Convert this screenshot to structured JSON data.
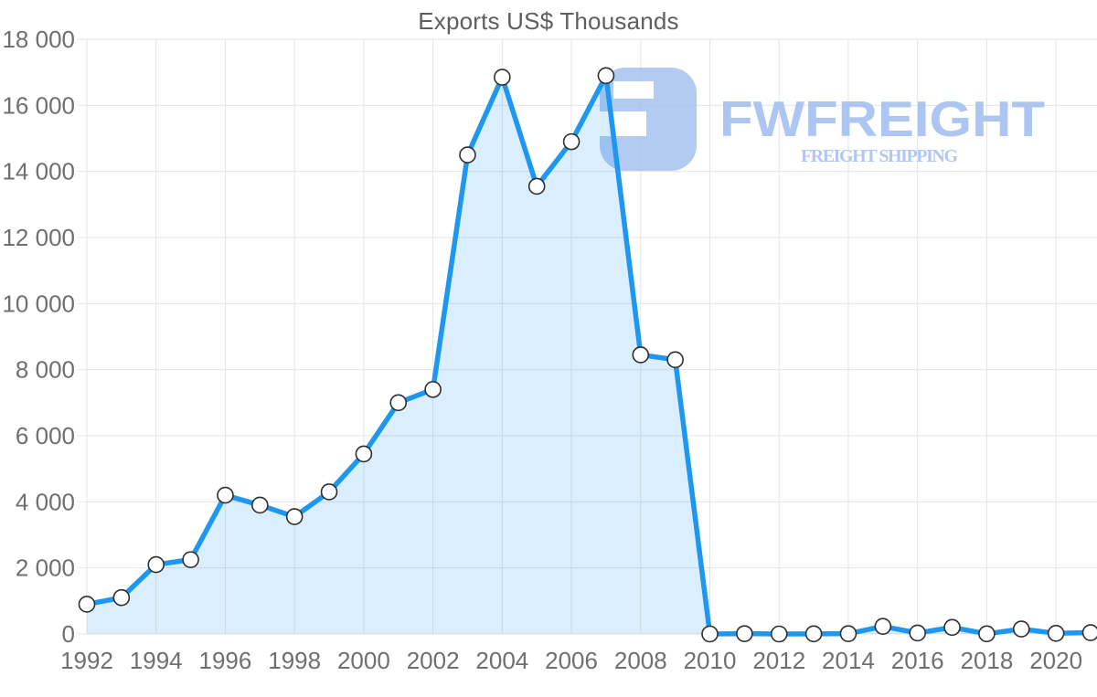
{
  "chart_data": {
    "type": "area",
    "title": "Exports US$ Thousands",
    "xlabel": "",
    "ylabel": "",
    "x": [
      1992,
      1993,
      1994,
      1995,
      1996,
      1997,
      1998,
      1999,
      2000,
      2001,
      2002,
      2003,
      2004,
      2005,
      2006,
      2007,
      2008,
      2009,
      2010,
      2011,
      2012,
      2013,
      2014,
      2015,
      2016,
      2017,
      2018,
      2019,
      2020,
      2021
    ],
    "values": [
      900,
      1100,
      2100,
      2250,
      4200,
      3900,
      3550,
      4300,
      5450,
      7000,
      7400,
      14500,
      16850,
      13550,
      14900,
      16900,
      8450,
      8300,
      0,
      10,
      0,
      5,
      10,
      230,
      30,
      200,
      5,
      150,
      20,
      40
    ],
    "x_tick_labels": [
      "1992",
      "1994",
      "1996",
      "1998",
      "2000",
      "2002",
      "2004",
      "2006",
      "2008",
      "2010",
      "2012",
      "2014",
      "2016",
      "2018",
      "2020"
    ],
    "y_ticks": [
      0,
      2000,
      4000,
      6000,
      8000,
      10000,
      12000,
      14000,
      16000,
      18000
    ],
    "y_tick_labels": [
      "0",
      "2 000",
      "4 000",
      "6 000",
      "8 000",
      "10 000",
      "12 000",
      "14 000",
      "16 000",
      "18 000"
    ],
    "ylim": [
      0,
      18000
    ],
    "xlim": [
      1992,
      2021
    ],
    "grid": true,
    "legend": false,
    "colors": {
      "line": "#1e97f0",
      "area_fill": "rgba(33,150,243,0.16)",
      "marker_fill": "#ffffff",
      "marker_stroke": "#2f2f2f",
      "grid": "#e4e4e4",
      "tick_text": "#6f6f6f",
      "title_text": "#5f5f5f"
    }
  },
  "watermark": {
    "brand": "FWFREIGHT",
    "tagline": "FREIGHT SHIPPING",
    "logo_icon": "freight-monogram-icon",
    "brand_color": "#a6c1f0",
    "tagline_color": "#aec4f2"
  }
}
